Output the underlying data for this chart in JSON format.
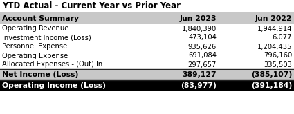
{
  "title": "YTD Actual - Current Year vs Prior Year",
  "col_headers": [
    "Account Summary",
    "Jun 2023",
    "Jun 2022"
  ],
  "rows": [
    [
      "Operating Revenue",
      "1,840,390",
      "1,944,914"
    ],
    [
      "Investment Income (Loss)",
      "473,104",
      "6,077"
    ],
    [
      "Personnel Expense",
      "935,626",
      "1,204,435"
    ],
    [
      "Operating Expense",
      "691,084",
      "796,160"
    ],
    [
      "Allocated Expenses - (Out) In",
      "297,657",
      "335,503"
    ]
  ],
  "net_income_row": [
    "Net Income (Loss)",
    "389,127",
    "(385,107)"
  ],
  "oper_income_row": [
    "Operating Income (Loss)",
    "(83,977)",
    "(391,184)"
  ],
  "header_bg": "#c8c8c8",
  "net_income_bg": "#c8c8c8",
  "oper_income_bg": "#000000",
  "oper_income_fg": "#ffffff",
  "title_fontsize": 8.5,
  "header_fontsize": 7.8,
  "data_fontsize": 7.2
}
